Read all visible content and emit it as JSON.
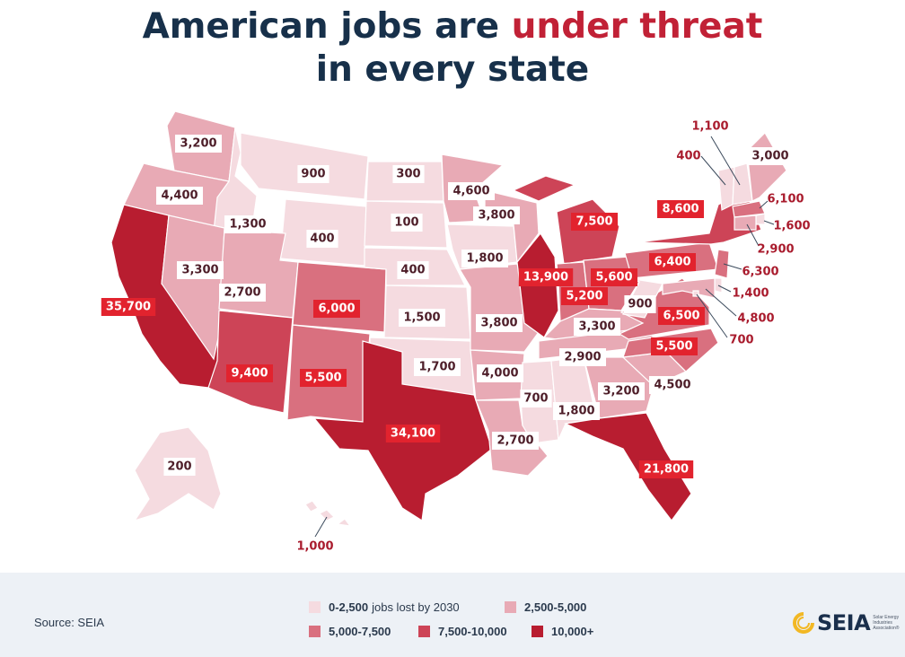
{
  "title": {
    "line1_prefix": "American jobs are ",
    "line1_accent": "under threat",
    "line2": "in every state"
  },
  "colors": {
    "title": "#17304a",
    "accent": "#c12136",
    "bin_0_2500": "#f5dbe0",
    "bin_2500_5000": "#e8aab5",
    "bin_5000_7500": "#d9707f",
    "bin_7500_10000": "#cd4457",
    "bin_10000_plus": "#b81d30",
    "label_red_box": "#e2232e"
  },
  "states": [
    {
      "abbr": "WA",
      "jobs": "3,200",
      "value": 3200
    },
    {
      "abbr": "OR",
      "jobs": "4,400",
      "value": 4400
    },
    {
      "abbr": "CA",
      "jobs": "35,700",
      "value": 35700
    },
    {
      "abbr": "ID",
      "jobs": "1,300",
      "value": 1300
    },
    {
      "abbr": "NV",
      "jobs": "3,300",
      "value": 3300
    },
    {
      "abbr": "MT",
      "jobs": "900",
      "value": 900
    },
    {
      "abbr": "WY",
      "jobs": "400",
      "value": 400
    },
    {
      "abbr": "UT",
      "jobs": "2,700",
      "value": 2700
    },
    {
      "abbr": "AZ",
      "jobs": "9,400",
      "value": 9400
    },
    {
      "abbr": "CO",
      "jobs": "6,000",
      "value": 6000
    },
    {
      "abbr": "NM",
      "jobs": "5,500",
      "value": 5500
    },
    {
      "abbr": "ND",
      "jobs": "300",
      "value": 300
    },
    {
      "abbr": "SD",
      "jobs": "100",
      "value": 100
    },
    {
      "abbr": "NE",
      "jobs": "400",
      "value": 400
    },
    {
      "abbr": "KS",
      "jobs": "1,500",
      "value": 1500
    },
    {
      "abbr": "OK",
      "jobs": "1,700",
      "value": 1700
    },
    {
      "abbr": "TX",
      "jobs": "34,100",
      "value": 34100
    },
    {
      "abbr": "MN",
      "jobs": "4,600",
      "value": 4600
    },
    {
      "abbr": "IA",
      "jobs": "1,800",
      "value": 1800
    },
    {
      "abbr": "MO",
      "jobs": "3,800",
      "value": 3800
    },
    {
      "abbr": "AR",
      "jobs": "4,000",
      "value": 4000
    },
    {
      "abbr": "LA",
      "jobs": "2,700",
      "value": 2700
    },
    {
      "abbr": "WI",
      "jobs": "3,800",
      "value": 3800
    },
    {
      "abbr": "IL",
      "jobs": "13,900",
      "value": 13900
    },
    {
      "abbr": "MI",
      "jobs": "7,500",
      "value": 7500
    },
    {
      "abbr": "IN",
      "jobs": "5,200",
      "value": 5200
    },
    {
      "abbr": "OH",
      "jobs": "5,600",
      "value": 5600
    },
    {
      "abbr": "KY",
      "jobs": "3,300",
      "value": 3300
    },
    {
      "abbr": "TN",
      "jobs": "2,900",
      "value": 2900
    },
    {
      "abbr": "MS",
      "jobs": "700",
      "value": 700
    },
    {
      "abbr": "AL",
      "jobs": "1,800",
      "value": 1800
    },
    {
      "abbr": "GA",
      "jobs": "3,200",
      "value": 3200
    },
    {
      "abbr": "FL",
      "jobs": "21,800",
      "value": 21800
    },
    {
      "abbr": "SC",
      "jobs": "4,500",
      "value": 4500
    },
    {
      "abbr": "NC",
      "jobs": "5,500",
      "value": 5500
    },
    {
      "abbr": "VA",
      "jobs": "6,500",
      "value": 6500
    },
    {
      "abbr": "WV",
      "jobs": "900",
      "value": 900
    },
    {
      "abbr": "PA",
      "jobs": "6,400",
      "value": 6400
    },
    {
      "abbr": "NY",
      "jobs": "8,600",
      "value": 8600
    },
    {
      "abbr": "VT",
      "jobs": "400",
      "value": 400
    },
    {
      "abbr": "NH",
      "jobs": "1,100",
      "value": 1100
    },
    {
      "abbr": "ME",
      "jobs": "3,000",
      "value": 3000
    },
    {
      "abbr": "MA",
      "jobs": "6,100",
      "value": 6100
    },
    {
      "abbr": "RI",
      "jobs": "1,600",
      "value": 1600
    },
    {
      "abbr": "CT",
      "jobs": "2,900",
      "value": 2900
    },
    {
      "abbr": "NJ",
      "jobs": "6,300",
      "value": 6300
    },
    {
      "abbr": "DE",
      "jobs": "1,400",
      "value": 1400
    },
    {
      "abbr": "MD",
      "jobs": "4,800",
      "value": 4800
    },
    {
      "abbr": "DC",
      "jobs": "700",
      "value": 700
    },
    {
      "abbr": "AK",
      "jobs": "200",
      "value": 200
    },
    {
      "abbr": "HI",
      "jobs": "1,000",
      "value": 1000
    }
  ],
  "legend": {
    "items": [
      {
        "range": "0-2,500",
        "suffix": "jobs lost by 2030"
      },
      {
        "range": "2,500-5,000",
        "suffix": ""
      },
      {
        "range": "5,000-7,500",
        "suffix": ""
      },
      {
        "range": "7,500-10,000",
        "suffix": ""
      },
      {
        "range": "10,000+",
        "suffix": ""
      }
    ]
  },
  "source": "Source: SEIA",
  "logo": {
    "name": "SEIA",
    "tagline": "Solar Energy Industries Association®"
  }
}
